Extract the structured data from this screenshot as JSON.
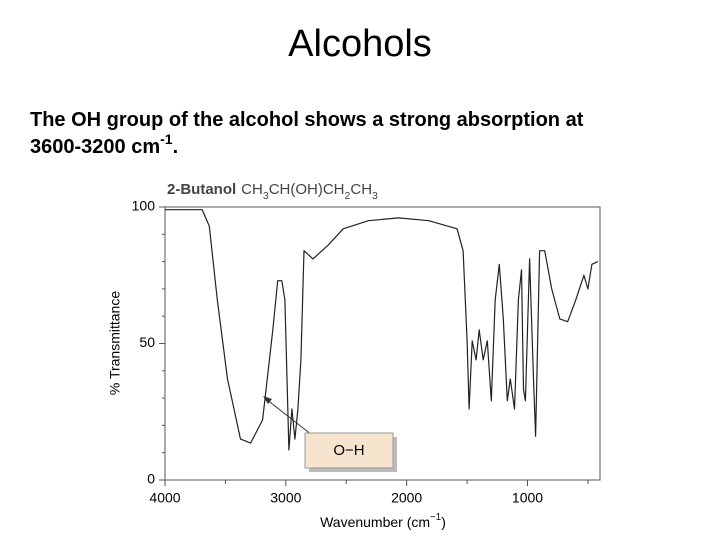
{
  "slide": {
    "title": "Alcohols",
    "body": [
      "The OH group of the alcohol shows a strong absorption at 3600-3200 cm",
      "-1",
      "."
    ]
  },
  "chart_data": {
    "type": "line",
    "title": "2-Butanol",
    "formula": [
      "CH",
      "3",
      "CH(OH)CH",
      "2",
      "CH",
      "3"
    ],
    "x_label": [
      "Wavenumber (cm",
      "−1",
      ")"
    ],
    "y_label": "% Transmittance",
    "annotation": "O−H",
    "color": "#222222",
    "x": [
      4000,
      3692,
      3633,
      3567,
      3483,
      3375,
      3292,
      3192,
      3108,
      3067,
      3033,
      3008,
      2975,
      2950,
      2925,
      2900,
      2875,
      2850,
      2775,
      2650,
      2525,
      2317,
      2067,
      1817,
      1583,
      1533,
      1500,
      1483,
      1458,
      1425,
      1400,
      1367,
      1333,
      1300,
      1267,
      1233,
      1200,
      1167,
      1142,
      1108,
      1075,
      1050,
      1033,
      1017,
      983,
      950,
      933,
      900,
      858,
      800,
      733,
      667,
      600,
      533,
      500,
      467,
      417
    ],
    "values": [
      99,
      99,
      93,
      66,
      37,
      15,
      13.5,
      22,
      55,
      73,
      73,
      66,
      11,
      26,
      15,
      26,
      44,
      84,
      81,
      86,
      92,
      95,
      96,
      95,
      92,
      84,
      51,
      26,
      51,
      44,
      55,
      44,
      51,
      29,
      66,
      79,
      59,
      29,
      37,
      26,
      66,
      77,
      33,
      29,
      81,
      37,
      16,
      84,
      84,
      70,
      59,
      58,
      66,
      75,
      70,
      79,
      80
    ],
    "xlim": [
      4000,
      400
    ],
    "xticks": [
      4000,
      3000,
      2000,
      1000
    ],
    "xminor": [
      3500,
      2500,
      1500,
      500
    ],
    "ylim": [
      0,
      100
    ],
    "yticks": [
      0,
      50,
      100
    ],
    "yminor": [
      10,
      20,
      30,
      40,
      60,
      70,
      80,
      90
    ]
  }
}
